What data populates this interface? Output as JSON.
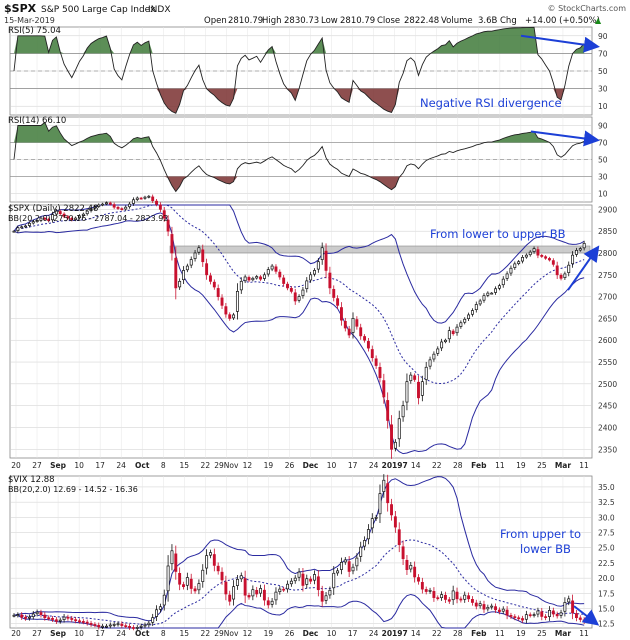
{
  "header": {
    "symbol": "$SPX",
    "name": "S&P 500 Large Cap Index",
    "exchange": "INDX",
    "date": "15-Mar-2019",
    "open_label": "Open",
    "open": "2810.79",
    "high_label": "High",
    "high": "2830.73",
    "low_label": "Low",
    "low": "2810.79",
    "close_label": "Close",
    "close": "2822.48",
    "volume_label": "Volume",
    "volume": "3.6B",
    "chg_label": "Chg",
    "chg": "+14.00 (+0.50%)",
    "chg_arrow": "▲",
    "watermark": "© StockCharts.com"
  },
  "colors": {
    "accent_blue": "#1c3fd6",
    "bb_line": "#2a2aa0",
    "rsi_overbought_fill": "#3f7a3a",
    "rsi_oversold_fill": "#7a3030",
    "candle_down": "#c8102e",
    "candle_up": "#111111",
    "resistance_band": "#bbbbbb",
    "grid": "#cccccc"
  },
  "annotations": {
    "rsi_divergence": "Negative RSI divergence",
    "spx_bb": "From lower to upper BB",
    "vix_bb_line1": "From upper to",
    "vix_bb_line2": "lower BB"
  },
  "x_axis": {
    "labels_price": [
      "20",
      "27",
      "Sep",
      "10",
      "17",
      "24",
      "Oct",
      "8",
      "15",
      "22",
      "29Nov",
      "12",
      "19",
      "26",
      "Dec",
      "10",
      "17",
      "24",
      "20197",
      "14",
      "22",
      "28",
      "Feb",
      "11",
      "19",
      "25",
      "Mar",
      "11"
    ],
    "labels_vix": [
      "20",
      "27",
      "Sep",
      "10",
      "17",
      "24",
      "Oct",
      "8",
      "15",
      "22",
      "29Nov",
      "12",
      "19",
      "26",
      "Dec",
      "10",
      "17",
      "24",
      "20197",
      "14",
      "22",
      "28",
      "Feb",
      "11",
      "19",
      "25",
      "Mar",
      "11"
    ],
    "bold_labels": [
      "Sep",
      "Oct",
      "Nov",
      "Dec",
      "2019",
      "Feb",
      "Mar"
    ]
  },
  "chart_data": [
    {
      "type": "line",
      "panel": "rsi5",
      "legend": "RSI(5) 75.04",
      "ylim": [
        0,
        100
      ],
      "yticks": [
        10,
        30,
        50,
        70,
        90
      ],
      "reference_lines": [
        30,
        50,
        70
      ],
      "last_value": 75.04
    },
    {
      "type": "line",
      "panel": "rsi14",
      "legend": "RSI(14) 66.10",
      "ylim": [
        0,
        100
      ],
      "yticks": [
        10,
        30,
        50,
        70,
        90
      ],
      "reference_lines": [
        30,
        50,
        70
      ],
      "last_value": 66.1
    },
    {
      "type": "candlestick",
      "panel": "spx",
      "legend_main": "$SPX (Daily) 2822.48",
      "legend_bb": "BB(20,2.0) 2750.16 - 2787.04 - 2823.92",
      "ylim": [
        2330,
        2910
      ],
      "yticks": [
        2350,
        2400,
        2450,
        2500,
        2550,
        2600,
        2650,
        2700,
        2750,
        2800,
        2850,
        2900
      ],
      "resistance_band": [
        2800,
        2816
      ],
      "bb_last": {
        "lower": 2750.16,
        "mid": 2787.04,
        "upper": 2823.92
      },
      "closes": [
        2850,
        2858,
        2860,
        2862,
        2868,
        2872,
        2874,
        2880,
        2878,
        2874,
        2888,
        2896,
        2890,
        2884,
        2880,
        2876,
        2880,
        2885,
        2889,
        2896,
        2902,
        2906,
        2910,
        2912,
        2915,
        2912,
        2905,
        2902,
        2900,
        2905,
        2912,
        2922,
        2926,
        2925,
        2928,
        2930,
        2920,
        2912,
        2900,
        2880,
        2850,
        2800,
        2720,
        2735,
        2760,
        2770,
        2785,
        2800,
        2812,
        2780,
        2750,
        2735,
        2722,
        2700,
        2680,
        2660,
        2650,
        2658,
        2712,
        2735,
        2745,
        2738,
        2742,
        2746,
        2740,
        2750,
        2762,
        2770,
        2758,
        2745,
        2730,
        2720,
        2712,
        2690,
        2700,
        2715,
        2736,
        2750,
        2760,
        2780,
        2812,
        2760,
        2720,
        2698,
        2680,
        2646,
        2628,
        2612,
        2650,
        2632,
        2610,
        2600,
        2582,
        2560,
        2542,
        2514,
        2470,
        2416,
        2350,
        2366,
        2420,
        2450,
        2505,
        2520,
        2510,
        2468,
        2505,
        2538,
        2555,
        2568,
        2580,
        2596,
        2600,
        2622,
        2615,
        2630,
        2640,
        2648,
        2658,
        2668,
        2682,
        2690,
        2702,
        2708,
        2708,
        2718,
        2725,
        2740,
        2752,
        2765,
        2775,
        2780,
        2790,
        2795,
        2802,
        2810,
        2795,
        2792,
        2788,
        2784,
        2774,
        2750,
        2742,
        2752,
        2772,
        2795,
        2806,
        2810,
        2822
      ]
    },
    {
      "type": "candlestick",
      "panel": "vix",
      "legend_main": "$VIX 12.88",
      "legend_bb": "BB(20,2.0) 12.69 - 14.52 - 16.36",
      "ylim": [
        11.8,
        36.8
      ],
      "yticks": [
        12.5,
        15.0,
        17.5,
        20.0,
        22.5,
        25.0,
        27.5,
        30.0,
        32.5,
        35.0
      ],
      "bb_last": {
        "lower": 12.69,
        "mid": 14.52,
        "upper": 16.36
      },
      "closes": [
        13.9,
        14.0,
        13.6,
        13.4,
        13.6,
        14.1,
        14.4,
        14.0,
        13.5,
        13.4,
        13.2,
        12.9,
        13.1,
        13.6,
        13.4,
        13.2,
        13.0,
        12.9,
        12.8,
        12.6,
        12.4,
        12.3,
        12.0,
        12.1,
        12.1,
        12.3,
        12.4,
        12.5,
        12.2,
        12.1,
        11.9,
        11.8,
        11.9,
        12.1,
        12.3,
        12.6,
        13.5,
        14.8,
        15.3,
        17.2,
        22.0,
        24.5,
        21.1,
        19.0,
        18.6,
        20.1,
        18.3,
        17.9,
        19.1,
        21.3,
        23.7,
        24.2,
        22.1,
        21.2,
        19.7,
        17.4,
        16.2,
        18.6,
        19.8,
        20.4,
        17.2,
        16.9,
        18.1,
        17.4,
        18.3,
        16.4,
        15.6,
        16.2,
        17.7,
        18.2,
        18.1,
        19.0,
        19.5,
        20.0,
        21.0,
        18.8,
        19.9,
        19.5,
        20.6,
        18.1,
        16.2,
        17.1,
        18.0,
        20.8,
        21.2,
        22.6,
        23.0,
        21.1,
        21.8,
        23.3,
        25.1,
        26.2,
        28.0,
        29.8,
        30.0,
        33.9,
        36.1,
        32.4,
        30.4,
        28.4,
        25.5,
        23.2,
        21.4,
        22.1,
        20.2,
        19.5,
        18.2,
        17.8,
        18.0,
        16.8,
        16.7,
        17.3,
        16.5,
        16.2,
        17.9,
        16.6,
        16.4,
        17.2,
        16.6,
        16.0,
        15.4,
        15.8,
        14.9,
        15.2,
        15.4,
        14.8,
        14.5,
        14.9,
        13.9,
        13.7,
        13.5,
        13.4,
        13.1,
        14.0,
        13.9,
        14.0,
        14.6,
        13.7,
        13.5,
        14.7,
        14.1,
        13.8,
        14.3,
        16.0,
        16.6,
        14.3,
        13.5,
        13.2,
        12.9
      ]
    }
  ]
}
